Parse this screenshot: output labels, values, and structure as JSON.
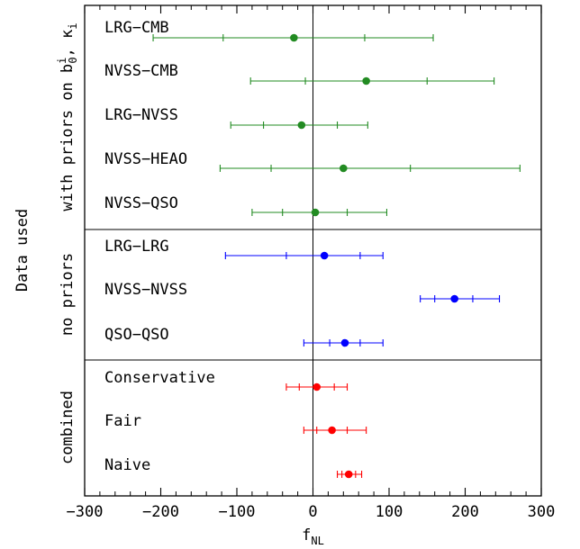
{
  "chart_data": {
    "type": "scatter",
    "xlabel": "f",
    "xlabel_sub": "NL",
    "ylabel": "Data used",
    "xlim": [
      -300,
      300
    ],
    "xticks": [
      "-300",
      "-200",
      "-100",
      "0",
      "100",
      "200",
      "300"
    ],
    "groups": [
      {
        "name": "with priors on b",
        "name_sup": "i",
        "name_sub": "0",
        "name_suffix": ", κ",
        "name_suffix_sub": "i",
        "color": "#228b22",
        "entries": [
          {
            "label": "LRG−CMB",
            "value": -25,
            "err1": [
              -118,
              68
            ],
            "err2": [
              -210,
              158
            ]
          },
          {
            "label": "NVSS−CMB",
            "value": 70,
            "err1": [
              -10,
              150
            ],
            "err2": [
              -82,
              238
            ]
          },
          {
            "label": "LRG−NVSS",
            "value": -15,
            "err1": [
              -65,
              32
            ],
            "err2": [
              -108,
              72
            ]
          },
          {
            "label": "NVSS−HEAO",
            "value": 40,
            "err1": [
              -55,
              128
            ],
            "err2": [
              -122,
              272
            ]
          },
          {
            "label": "NVSS−QSO",
            "value": 3,
            "err1": [
              -40,
              45
            ],
            "err2": [
              -80,
              97
            ]
          }
        ]
      },
      {
        "name": "no priors",
        "color": "#0000ff",
        "entries": [
          {
            "label": "LRG−LRG",
            "value": 15,
            "err1": [
              -35,
              62
            ],
            "err2": [
              -115,
              92
            ]
          },
          {
            "label": "NVSS−NVSS",
            "value": 186,
            "err1": [
              160,
              210
            ],
            "err2": [
              141,
              245
            ]
          },
          {
            "label": "QSO−QSO",
            "value": 42,
            "err1": [
              22,
              62
            ],
            "err2": [
              -12,
              92
            ]
          }
        ]
      },
      {
        "name": "combined",
        "color": "#ff0000",
        "entries": [
          {
            "label": "Conservative",
            "value": 5,
            "err1": [
              -18,
              28
            ],
            "err2": [
              -35,
              45
            ]
          },
          {
            "label": "Fair",
            "value": 25,
            "err1": [
              5,
              45
            ],
            "err2": [
              -12,
              70
            ]
          },
          {
            "label": "Naive",
            "value": 47,
            "err1": [
              38,
              56
            ],
            "err2": [
              32,
              64
            ]
          }
        ]
      }
    ]
  }
}
